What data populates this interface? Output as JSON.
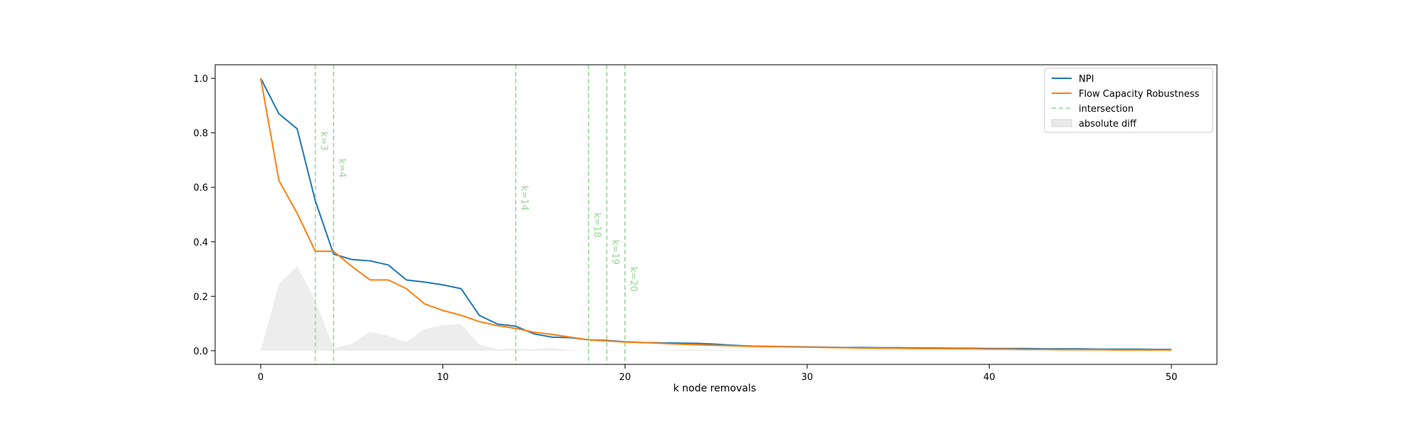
{
  "chart_data": {
    "type": "line",
    "title": "",
    "xlabel": "k node removals",
    "ylabel": "",
    "xlim": [
      -2.5,
      52.5
    ],
    "ylim": [
      -0.05,
      1.05
    ],
    "xticks": [
      0,
      10,
      20,
      30,
      40,
      50
    ],
    "xtick_labels": [
      "0",
      "10",
      "20",
      "30",
      "40",
      "50"
    ],
    "yticks": [
      0.0,
      0.2,
      0.4,
      0.6,
      0.8,
      1.0
    ],
    "ytick_labels": [
      "0.0",
      "0.2",
      "0.4",
      "0.6",
      "0.8",
      "1.0"
    ],
    "grid": false,
    "legend_position": "top-right",
    "x": [
      0,
      1,
      2,
      3,
      4,
      5,
      6,
      7,
      8,
      9,
      10,
      11,
      12,
      13,
      14,
      15,
      16,
      17,
      18,
      19,
      20,
      21,
      22,
      23,
      24,
      25,
      26,
      27,
      28,
      29,
      30,
      31,
      32,
      33,
      34,
      35,
      36,
      37,
      38,
      39,
      40,
      41,
      42,
      43,
      44,
      45,
      46,
      47,
      48,
      49,
      50
    ],
    "series": [
      {
        "name": "NPI",
        "color": "#1f77b4",
        "values": [
          1.0,
          0.87,
          0.815,
          0.55,
          0.355,
          0.335,
          0.33,
          0.315,
          0.26,
          0.252,
          0.242,
          0.228,
          0.13,
          0.098,
          0.09,
          0.062,
          0.05,
          0.048,
          0.04,
          0.038,
          0.033,
          0.03,
          0.029,
          0.028,
          0.027,
          0.024,
          0.02,
          0.017,
          0.016,
          0.015,
          0.014,
          0.013,
          0.012,
          0.012,
          0.011,
          0.011,
          0.01,
          0.01,
          0.009,
          0.009,
          0.008,
          0.008,
          0.008,
          0.007,
          0.007,
          0.007,
          0.006,
          0.006,
          0.006,
          0.005,
          0.005
        ]
      },
      {
        "name": "Flow Capacity Robustness",
        "color": "#ff7f0e",
        "values": [
          1.0,
          0.625,
          0.505,
          0.365,
          0.365,
          0.31,
          0.26,
          0.26,
          0.228,
          0.172,
          0.148,
          0.13,
          0.107,
          0.092,
          0.082,
          0.068,
          0.06,
          0.05,
          0.04,
          0.036,
          0.032,
          0.03,
          0.027,
          0.024,
          0.022,
          0.02,
          0.018,
          0.016,
          0.015,
          0.014,
          0.013,
          0.012,
          0.011,
          0.01,
          0.009,
          0.009,
          0.008,
          0.008,
          0.007,
          0.007,
          0.006,
          0.006,
          0.005,
          0.005,
          0.004,
          0.004,
          0.004,
          0.003,
          0.003,
          0.003,
          0.003
        ]
      }
    ],
    "intersections": {
      "name": "intersection",
      "color": "#98d698",
      "k_values": [
        3,
        4,
        14,
        18,
        19,
        20
      ],
      "labels": [
        "k=3",
        "k=4",
        "k=14",
        "k=18",
        "k=19",
        "k=20"
      ]
    },
    "absolute_diff": {
      "name": "absolute diff",
      "color": "#e9e9e9"
    }
  }
}
